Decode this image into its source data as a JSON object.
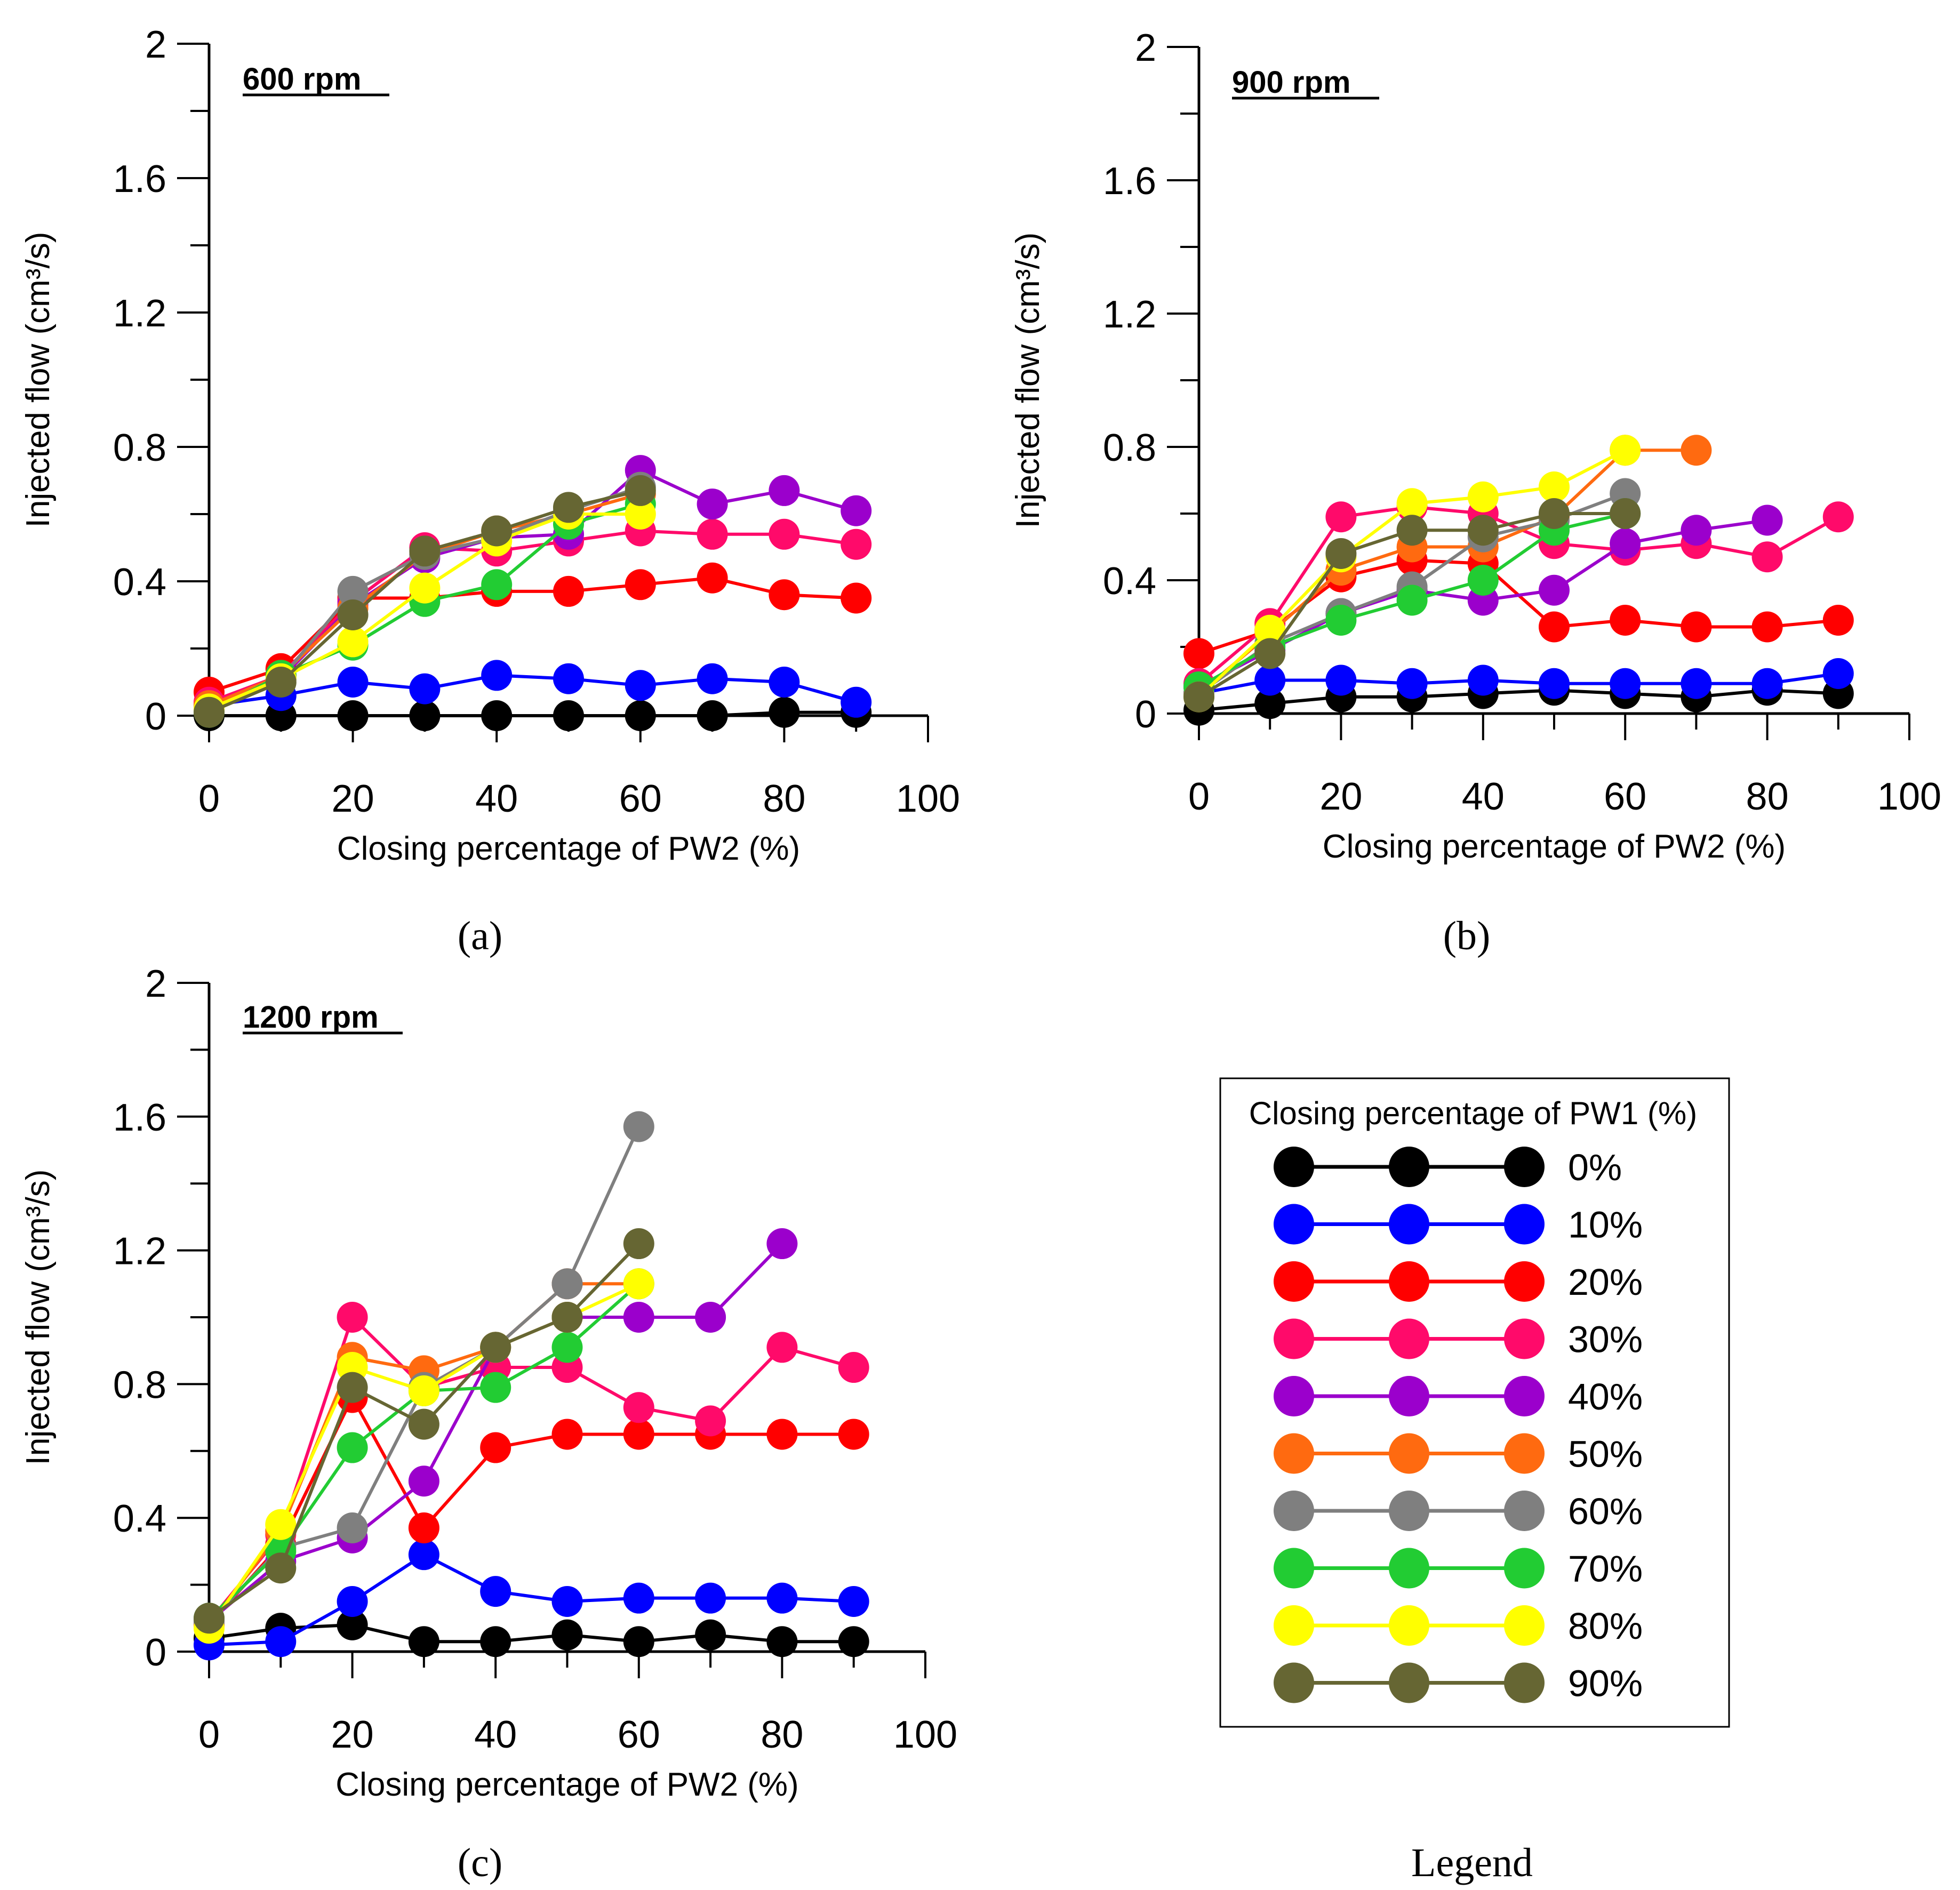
{
  "chart_data": [
    {
      "type": "line",
      "panel": "(a)",
      "title": "600 rpm",
      "xlabel": "Closing percentage of PW2 (%)",
      "ylabel": "Injected flow (cm³/s)",
      "xlim": [
        0,
        100
      ],
      "ylim": [
        0,
        2
      ],
      "xticks": [
        "0",
        "20",
        "40",
        "60",
        "80",
        "100"
      ],
      "yticks": [
        "0",
        "0.4",
        "0.8",
        "1.2",
        "1.6",
        "2"
      ],
      "series": [
        {
          "name": "0%",
          "x": [
            0,
            10,
            20,
            30,
            40,
            50,
            60,
            70,
            80,
            90
          ],
          "values": [
            0.0,
            0.0,
            0.0,
            0.0,
            0.0,
            0.0,
            0.0,
            0.0,
            0.01,
            0.01
          ]
        },
        {
          "name": "10%",
          "x": [
            0,
            10,
            20,
            30,
            40,
            50,
            60,
            70,
            80,
            90
          ],
          "values": [
            0.03,
            0.06,
            0.1,
            0.08,
            0.12,
            0.11,
            0.09,
            0.11,
            0.1,
            0.04
          ]
        },
        {
          "name": "20%",
          "x": [
            0,
            10,
            20,
            30,
            40,
            50,
            60,
            70,
            80,
            90
          ],
          "values": [
            0.07,
            0.14,
            0.35,
            0.35,
            0.37,
            0.37,
            0.39,
            0.41,
            0.36,
            0.35
          ]
        },
        {
          "name": "30%",
          "x": [
            0,
            10,
            20,
            30,
            40,
            50,
            60,
            70,
            80,
            90
          ],
          "values": [
            0.04,
            0.12,
            0.34,
            0.5,
            0.49,
            0.52,
            0.55,
            0.54,
            0.54,
            0.51
          ]
        },
        {
          "name": "40%",
          "x": [
            0,
            10,
            20,
            30,
            40,
            50,
            60,
            70,
            80,
            90
          ],
          "values": [
            0.02,
            0.11,
            0.33,
            0.47,
            0.53,
            0.54,
            0.73,
            0.63,
            0.67,
            0.61
          ]
        },
        {
          "name": "50%",
          "x": [
            0,
            10,
            20,
            30,
            40,
            50,
            60
          ],
          "values": [
            0.03,
            0.12,
            0.32,
            0.48,
            0.55,
            0.6,
            0.66
          ]
        },
        {
          "name": "60%",
          "x": [
            0,
            10,
            20,
            30,
            40,
            50,
            60
          ],
          "values": [
            0.02,
            0.11,
            0.37,
            0.48,
            0.53,
            0.61,
            0.68
          ]
        },
        {
          "name": "70%",
          "x": [
            0,
            10,
            20,
            30,
            40,
            50,
            60
          ],
          "values": [
            0.01,
            0.12,
            0.21,
            0.34,
            0.39,
            0.57,
            0.63
          ]
        },
        {
          "name": "80%",
          "x": [
            0,
            10,
            20,
            30,
            40,
            50,
            60
          ],
          "values": [
            0.02,
            0.11,
            0.22,
            0.38,
            0.52,
            0.6,
            0.6
          ]
        },
        {
          "name": "90%",
          "x": [
            0,
            10,
            20,
            30,
            40,
            50,
            60
          ],
          "values": [
            0.01,
            0.1,
            0.3,
            0.49,
            0.55,
            0.62,
            0.67
          ]
        }
      ]
    },
    {
      "type": "line",
      "panel": "(b)",
      "title": "900 rpm",
      "xlabel": "Closing percentage of PW2 (%)",
      "ylabel": "Injected flow (cm³/s)",
      "xlim": [
        0,
        100
      ],
      "ylim": [
        0,
        2
      ],
      "xticks": [
        "0",
        "20",
        "40",
        "60",
        "80",
        "100"
      ],
      "yticks": [
        "0",
        "0.4",
        "0.8",
        "1.2",
        "1.6",
        "2"
      ],
      "series": [
        {
          "name": "0%",
          "x": [
            0,
            10,
            20,
            30,
            40,
            50,
            60,
            70,
            80,
            90
          ],
          "values": [
            0.01,
            0.03,
            0.05,
            0.05,
            0.06,
            0.07,
            0.06,
            0.05,
            0.07,
            0.06
          ]
        },
        {
          "name": "10%",
          "x": [
            0,
            10,
            20,
            30,
            40,
            50,
            60,
            70,
            80,
            90
          ],
          "values": [
            0.06,
            0.1,
            0.1,
            0.09,
            0.1,
            0.09,
            0.09,
            0.09,
            0.09,
            0.12
          ]
        },
        {
          "name": "20%",
          "x": [
            0,
            10,
            20,
            30,
            40,
            50,
            60,
            70,
            80,
            90
          ],
          "values": [
            0.18,
            0.25,
            0.41,
            0.46,
            0.45,
            0.26,
            0.28,
            0.26,
            0.26,
            0.28
          ]
        },
        {
          "name": "30%",
          "x": [
            0,
            10,
            20,
            30,
            40,
            50,
            60,
            70,
            80,
            90
          ],
          "values": [
            0.09,
            0.27,
            0.59,
            0.62,
            0.6,
            0.51,
            0.49,
            0.51,
            0.47,
            0.59
          ]
        },
        {
          "name": "40%",
          "x": [
            0,
            10,
            20,
            30,
            40,
            50,
            60,
            70,
            80
          ],
          "values": [
            0.08,
            0.19,
            0.3,
            0.37,
            0.34,
            0.37,
            0.51,
            0.55,
            0.58
          ]
        },
        {
          "name": "50%",
          "x": [
            0,
            10,
            20,
            30,
            40,
            50,
            60,
            70
          ],
          "values": [
            0.06,
            0.24,
            0.43,
            0.5,
            0.5,
            0.59,
            0.79,
            0.79
          ]
        },
        {
          "name": "60%",
          "x": [
            0,
            10,
            20,
            30,
            40,
            50,
            60
          ],
          "values": [
            0.06,
            0.21,
            0.3,
            0.38,
            0.53,
            0.58,
            0.66
          ]
        },
        {
          "name": "70%",
          "x": [
            0,
            10,
            20,
            30,
            40,
            50,
            60
          ],
          "values": [
            0.08,
            0.2,
            0.28,
            0.34,
            0.4,
            0.55,
            0.6
          ]
        },
        {
          "name": "80%",
          "x": [
            0,
            10,
            20,
            30,
            40,
            50,
            60
          ],
          "values": [
            0.05,
            0.25,
            0.47,
            0.63,
            0.65,
            0.68,
            0.79
          ]
        },
        {
          "name": "90%",
          "x": [
            0,
            10,
            20,
            30,
            40,
            50,
            60
          ],
          "values": [
            0.05,
            0.18,
            0.48,
            0.55,
            0.55,
            0.6,
            0.6
          ]
        }
      ]
    },
    {
      "type": "line",
      "panel": "(c)",
      "title": "1200 rpm",
      "xlabel": "Closing percentage of PW2 (%)",
      "ylabel": "Injected flow (cm³/s)",
      "xlim": [
        0,
        100
      ],
      "ylim": [
        0,
        2
      ],
      "xticks": [
        "0",
        "20",
        "40",
        "60",
        "80",
        "100"
      ],
      "yticks": [
        "0",
        "0.4",
        "0.8",
        "1.2",
        "1.6",
        "2"
      ],
      "series": [
        {
          "name": "0%",
          "x": [
            0,
            10,
            20,
            30,
            40,
            50,
            60,
            70,
            80,
            90
          ],
          "values": [
            0.04,
            0.07,
            0.08,
            0.03,
            0.03,
            0.05,
            0.03,
            0.05,
            0.03,
            0.03
          ]
        },
        {
          "name": "10%",
          "x": [
            0,
            10,
            20,
            30,
            40,
            50,
            60,
            70,
            80,
            90
          ],
          "values": [
            0.02,
            0.03,
            0.15,
            0.29,
            0.18,
            0.15,
            0.16,
            0.16,
            0.16,
            0.15
          ]
        },
        {
          "name": "20%",
          "x": [
            0,
            10,
            20,
            30,
            40,
            50,
            60,
            70,
            80,
            90
          ],
          "values": [
            0.08,
            0.32,
            0.76,
            0.37,
            0.61,
            0.65,
            0.65,
            0.65,
            0.65,
            0.65
          ]
        },
        {
          "name": "30%",
          "x": [
            0,
            10,
            20,
            30,
            40,
            50,
            60,
            70,
            80,
            90
          ],
          "values": [
            0.09,
            0.35,
            1.0,
            0.79,
            0.85,
            0.85,
            0.73,
            0.69,
            0.91,
            0.85
          ]
        },
        {
          "name": "40%",
          "x": [
            0,
            10,
            20,
            30,
            40,
            50,
            60,
            70,
            80
          ],
          "values": [
            0.09,
            0.27,
            0.34,
            0.51,
            0.91,
            1.0,
            1.0,
            1.0,
            1.22
          ]
        },
        {
          "name": "50%",
          "x": [
            0,
            10,
            20,
            30,
            40,
            50,
            60
          ],
          "values": [
            0.08,
            0.36,
            0.88,
            0.84,
            0.91,
            1.1,
            1.1
          ]
        },
        {
          "name": "60%",
          "x": [
            0,
            10,
            20,
            30,
            40,
            50,
            60
          ],
          "values": [
            0.09,
            0.31,
            0.37,
            0.79,
            0.91,
            1.1,
            1.57
          ]
        },
        {
          "name": "70%",
          "x": [
            0,
            10,
            20,
            30,
            40,
            50,
            60
          ],
          "values": [
            0.1,
            0.3,
            0.61,
            0.78,
            0.79,
            0.91,
            1.1
          ]
        },
        {
          "name": "80%",
          "x": [
            0,
            10,
            20,
            30,
            40,
            50,
            60
          ],
          "values": [
            0.07,
            0.38,
            0.85,
            0.78,
            0.91,
            1.0,
            1.1
          ]
        },
        {
          "name": "90%",
          "x": [
            0,
            10,
            20,
            30,
            40,
            50,
            60
          ],
          "values": [
            0.1,
            0.25,
            0.79,
            0.68,
            0.91,
            1.0,
            1.22
          ]
        }
      ]
    }
  ],
  "series_colors": {
    "0%": "#000000",
    "10%": "#0000FF",
    "20%": "#FF0000",
    "30%": "#FF0A6A",
    "40%": "#9B00CC",
    "50%": "#FF6A10",
    "60%": "#7F7F7F",
    "70%": "#22CC33",
    "80%": "#FFFF00",
    "90%": "#666633"
  },
  "captions": {
    "a": "(a)",
    "b": "(b)",
    "c": "(c)",
    "legend": "Legend"
  },
  "legend": {
    "title": "Closing percentage of PW1 (%)",
    "entries": [
      "0%",
      "10%",
      "20%",
      "30%",
      "40%",
      "50%",
      "60%",
      "70%",
      "80%",
      "90%"
    ]
  }
}
